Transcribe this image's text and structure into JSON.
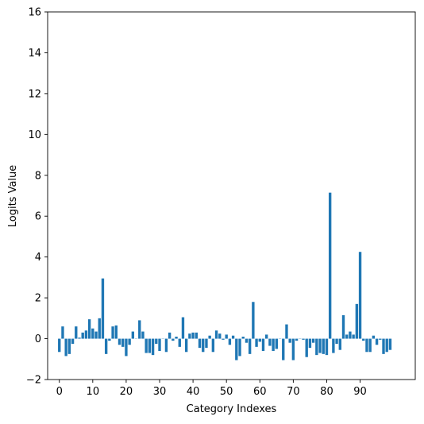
{
  "chart_data": {
    "type": "bar",
    "title": "",
    "xlabel": "Category Indexes",
    "ylabel": "Logits Value",
    "ylim": [
      -2,
      16
    ],
    "xlim": [
      -3.5,
      106.5
    ],
    "yticks": [
      -2,
      0,
      2,
      4,
      6,
      8,
      10,
      12,
      14,
      16
    ],
    "xticks": [
      0,
      10,
      20,
      30,
      40,
      50,
      60,
      70,
      80,
      90
    ],
    "grid": false,
    "legend": "none",
    "bar_color": "#1f77b4",
    "x": [
      0,
      1,
      2,
      3,
      4,
      5,
      6,
      7,
      8,
      9,
      10,
      11,
      12,
      13,
      14,
      15,
      16,
      17,
      18,
      19,
      20,
      21,
      22,
      23,
      24,
      25,
      26,
      27,
      28,
      29,
      30,
      31,
      32,
      33,
      34,
      35,
      36,
      37,
      38,
      39,
      40,
      41,
      42,
      43,
      44,
      45,
      46,
      47,
      48,
      49,
      50,
      51,
      52,
      53,
      54,
      55,
      56,
      57,
      58,
      59,
      60,
      61,
      62,
      63,
      64,
      65,
      66,
      67,
      68,
      69,
      70,
      71,
      72,
      73,
      74,
      75,
      76,
      77,
      78,
      79,
      80,
      81,
      82,
      83,
      84,
      85,
      86,
      87,
      88,
      89,
      90,
      91,
      92,
      93,
      94,
      95,
      96,
      97,
      98,
      99
    ],
    "values": [
      -0.65,
      0.6,
      -0.85,
      -0.75,
      -0.25,
      0.6,
      0.05,
      0.3,
      0.4,
      0.95,
      0.5,
      0.35,
      1.0,
      2.95,
      -0.75,
      -0.1,
      0.6,
      0.65,
      -0.3,
      -0.4,
      -0.85,
      -0.3,
      0.35,
      0.0,
      0.9,
      0.35,
      -0.7,
      -0.7,
      -0.8,
      -0.25,
      -0.6,
      0.0,
      -0.65,
      0.3,
      -0.1,
      0.1,
      -0.4,
      1.05,
      -0.65,
      0.25,
      0.3,
      0.3,
      -0.45,
      -0.65,
      -0.45,
      0.15,
      -0.65,
      0.4,
      0.25,
      -0.05,
      0.2,
      -0.3,
      0.15,
      -1.05,
      -0.85,
      0.1,
      -0.2,
      -0.75,
      1.8,
      -0.4,
      -0.15,
      -0.6,
      0.2,
      -0.35,
      -0.6,
      -0.5,
      0.0,
      -1.05,
      0.7,
      -0.2,
      -1.05,
      -0.1,
      0.0,
      -0.05,
      -0.9,
      -0.45,
      -0.2,
      -0.8,
      -0.7,
      -0.75,
      -0.8,
      7.15,
      -0.7,
      -0.25,
      -0.55,
      1.15,
      0.2,
      0.35,
      0.2,
      1.7,
      4.25,
      -0.1,
      -0.65,
      -0.65,
      0.15,
      -0.3,
      -0.05,
      -0.75,
      -0.65,
      -0.55
    ]
  }
}
